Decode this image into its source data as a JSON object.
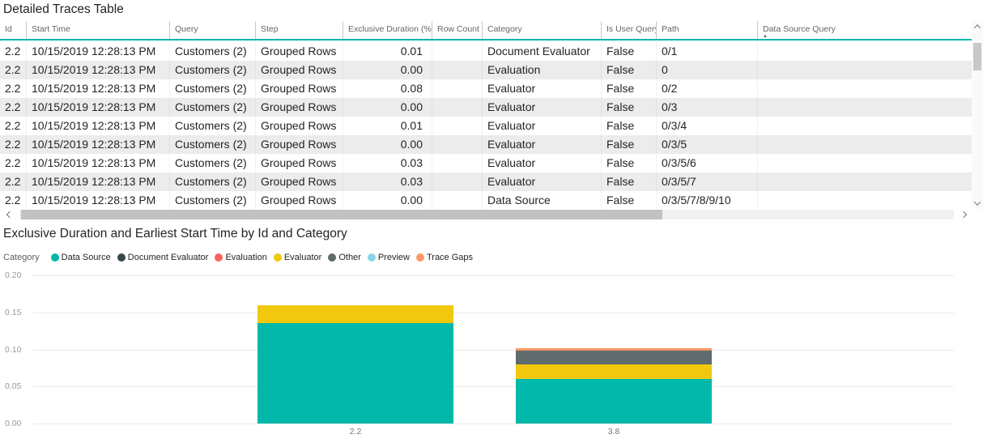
{
  "table": {
    "title": "Detailed Traces Table",
    "columns": [
      "Id",
      "Start Time",
      "Query",
      "Step",
      "Exclusive Duration (%)",
      "Row Count",
      "Category",
      "Is User Query",
      "Path",
      "Data Source Query"
    ],
    "sorted_column": "Data Source Query",
    "sort_direction": "ascending",
    "rows": [
      [
        "2.2",
        "10/15/2019 12:28:13 PM",
        "Customers (2)",
        "Grouped Rows",
        "0.01",
        "",
        "Document Evaluator",
        "False",
        "0/1",
        ""
      ],
      [
        "2.2",
        "10/15/2019 12:28:13 PM",
        "Customers (2)",
        "Grouped Rows",
        "0.00",
        "",
        "Evaluation",
        "False",
        "0",
        ""
      ],
      [
        "2.2",
        "10/15/2019 12:28:13 PM",
        "Customers (2)",
        "Grouped Rows",
        "0.08",
        "",
        "Evaluator",
        "False",
        "0/2",
        ""
      ],
      [
        "2.2",
        "10/15/2019 12:28:13 PM",
        "Customers (2)",
        "Grouped Rows",
        "0.00",
        "",
        "Evaluator",
        "False",
        "0/3",
        ""
      ],
      [
        "2.2",
        "10/15/2019 12:28:13 PM",
        "Customers (2)",
        "Grouped Rows",
        "0.01",
        "",
        "Evaluator",
        "False",
        "0/3/4",
        ""
      ],
      [
        "2.2",
        "10/15/2019 12:28:13 PM",
        "Customers (2)",
        "Grouped Rows",
        "0.00",
        "",
        "Evaluator",
        "False",
        "0/3/5",
        ""
      ],
      [
        "2.2",
        "10/15/2019 12:28:13 PM",
        "Customers (2)",
        "Grouped Rows",
        "0.03",
        "",
        "Evaluator",
        "False",
        "0/3/5/6",
        ""
      ],
      [
        "2.2",
        "10/15/2019 12:28:13 PM",
        "Customers (2)",
        "Grouped Rows",
        "0.03",
        "",
        "Evaluator",
        "False",
        "0/3/5/7",
        ""
      ],
      [
        "2.2",
        "10/15/2019 12:28:13 PM",
        "Customers (2)",
        "Grouped Rows",
        "0.00",
        "",
        "Data Source",
        "False",
        "0/3/5/7/8/9/10",
        ""
      ]
    ]
  },
  "chart": {
    "title": "Exclusive Duration and Earliest Start Time by Id and Category",
    "legend_title": "Category",
    "chart_data": {
      "type": "bar",
      "stacked": true,
      "title": "Exclusive Duration and Earliest Start Time by Id and Category",
      "categories": [
        "2.2",
        "3.8"
      ],
      "series": [
        {
          "name": "Data Source",
          "color": "#01B8AA",
          "values": [
            0.135,
            0.06
          ]
        },
        {
          "name": "Document Evaluator",
          "color": "#374649",
          "values": [
            0,
            0
          ]
        },
        {
          "name": "Evaluation",
          "color": "#FD625E",
          "values": [
            0,
            0
          ]
        },
        {
          "name": "Evaluator",
          "color": "#F2C80F",
          "values": [
            0.025,
            0.02
          ]
        },
        {
          "name": "Other",
          "color": "#5F6B6D",
          "values": [
            0,
            0.018
          ]
        },
        {
          "name": "Preview",
          "color": "#8AD4EB",
          "values": [
            0,
            0
          ]
        },
        {
          "name": "Trace Gaps",
          "color": "#FE9666",
          "values": [
            0,
            0.004
          ]
        }
      ],
      "xlabel": "",
      "ylabel": "",
      "ylim": [
        0,
        0.2
      ],
      "yticks": [
        "0.00",
        "0.05",
        "0.10",
        "0.15",
        "0.20"
      ],
      "grid": true,
      "legend_position": "top"
    }
  },
  "colors": {
    "accent_teal": "#01B8AA",
    "row_stripe": "#ececec",
    "header_text": "#666666",
    "cell_text": "#252423"
  }
}
